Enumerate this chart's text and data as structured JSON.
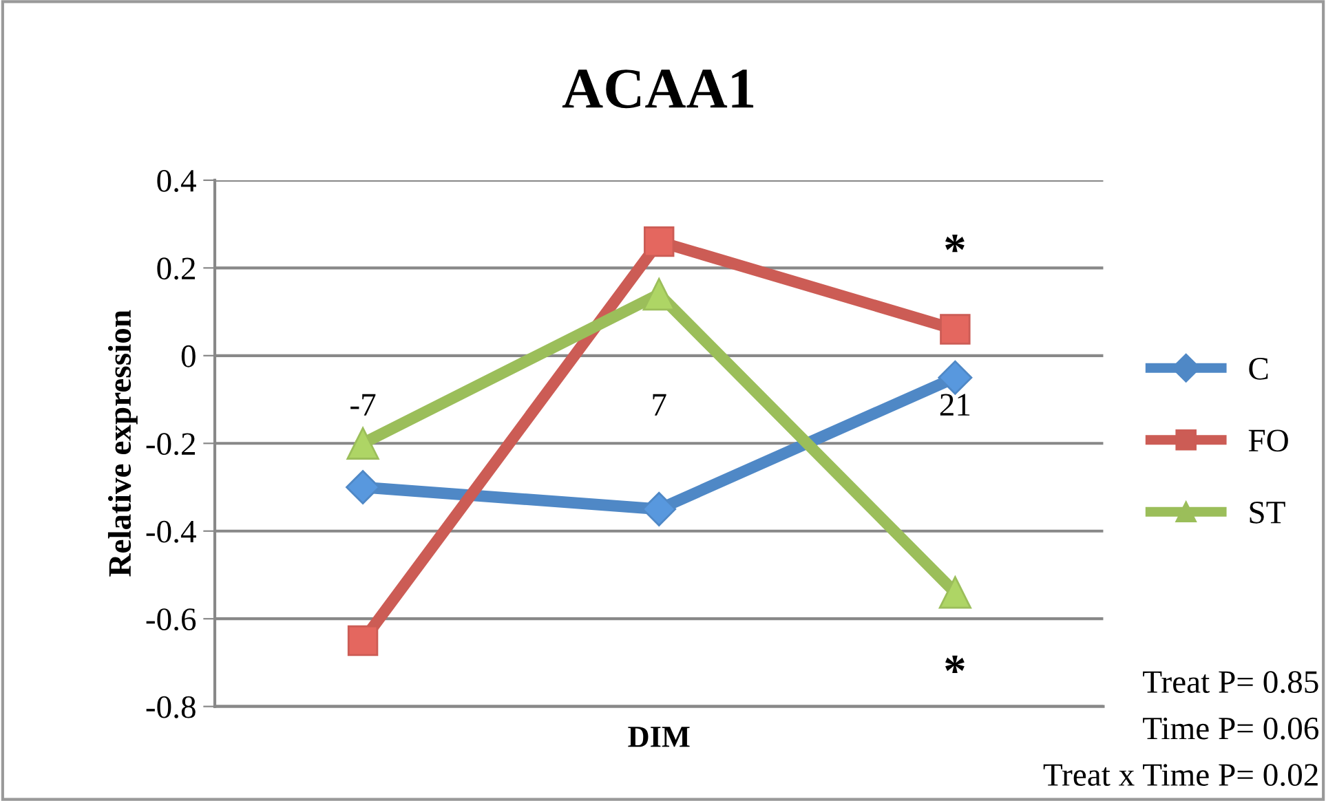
{
  "chart_data": {
    "type": "line",
    "title": "ACAA1",
    "xlabel": "DIM",
    "ylabel": "Relative expression",
    "categories": [
      "-7",
      "7",
      "21"
    ],
    "series": [
      {
        "name": "C",
        "color": "#4f88c6",
        "marker": "diamond",
        "values": [
          -0.3,
          -0.35,
          -0.05
        ]
      },
      {
        "name": "FO",
        "color": "#cc5c55",
        "marker": "square",
        "values": [
          -0.65,
          0.26,
          0.06
        ]
      },
      {
        "name": "ST",
        "color": "#9bbe5a",
        "marker": "triangle",
        "values": [
          -0.2,
          0.14,
          -0.54
        ]
      }
    ],
    "ylim": [
      -0.8,
      0.4
    ],
    "yticks": [
      -0.8,
      -0.6,
      -0.4,
      -0.2,
      0,
      0.2,
      0.4
    ],
    "grid": "y",
    "legend": "right",
    "annotations": [
      "*",
      "*",
      "Treat P= 0.85",
      "Time P= 0.06",
      "Treat x Time P= 0.02"
    ]
  }
}
